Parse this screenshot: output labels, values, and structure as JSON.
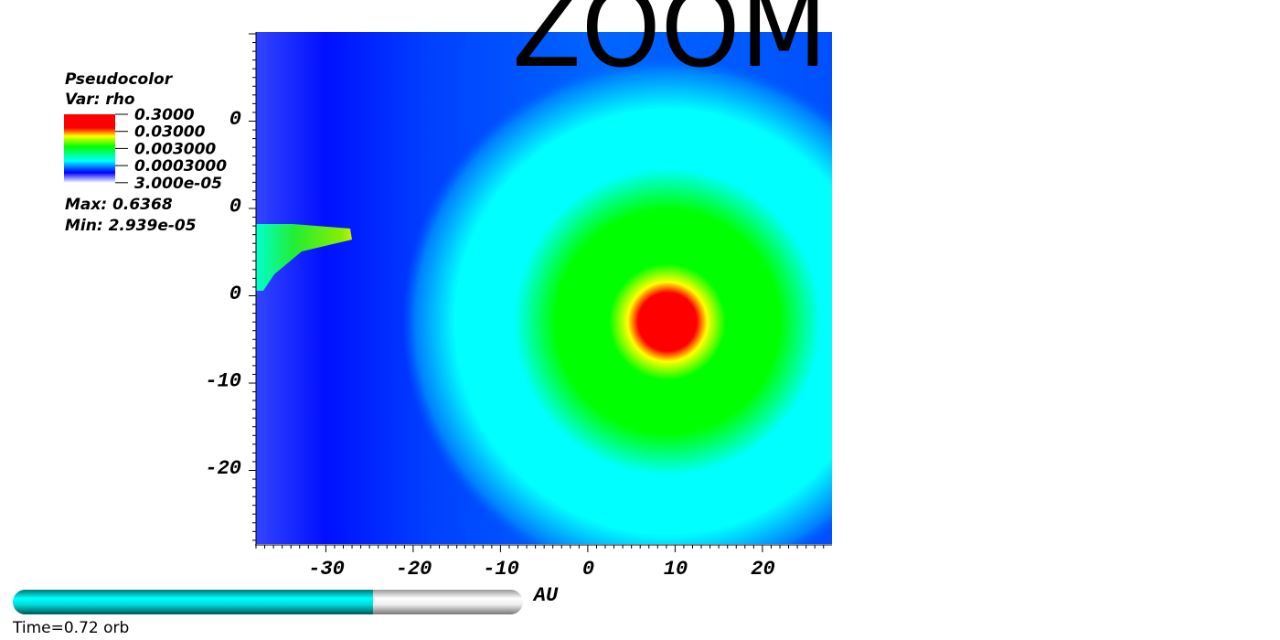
{
  "zoom_label": "ZOOM",
  "legend": {
    "title": "Pseudocolor",
    "variable": "Var: rho",
    "levels": [
      "0.3000",
      "0.03000",
      "0.003000",
      "0.0003000",
      "3.000e-05"
    ],
    "max": "Max:  0.6368",
    "min": "Min:  2.939e-05"
  },
  "x_axis": {
    "title": "AU",
    "tick_labels": [
      "-30",
      "-20",
      "-10",
      "0",
      "10",
      "20"
    ]
  },
  "y_axis": {
    "tick_labels": [
      "0",
      "0",
      "0",
      "-10",
      "-20"
    ]
  },
  "time_slider": {
    "label": "Time=0.72 orb"
  }
}
